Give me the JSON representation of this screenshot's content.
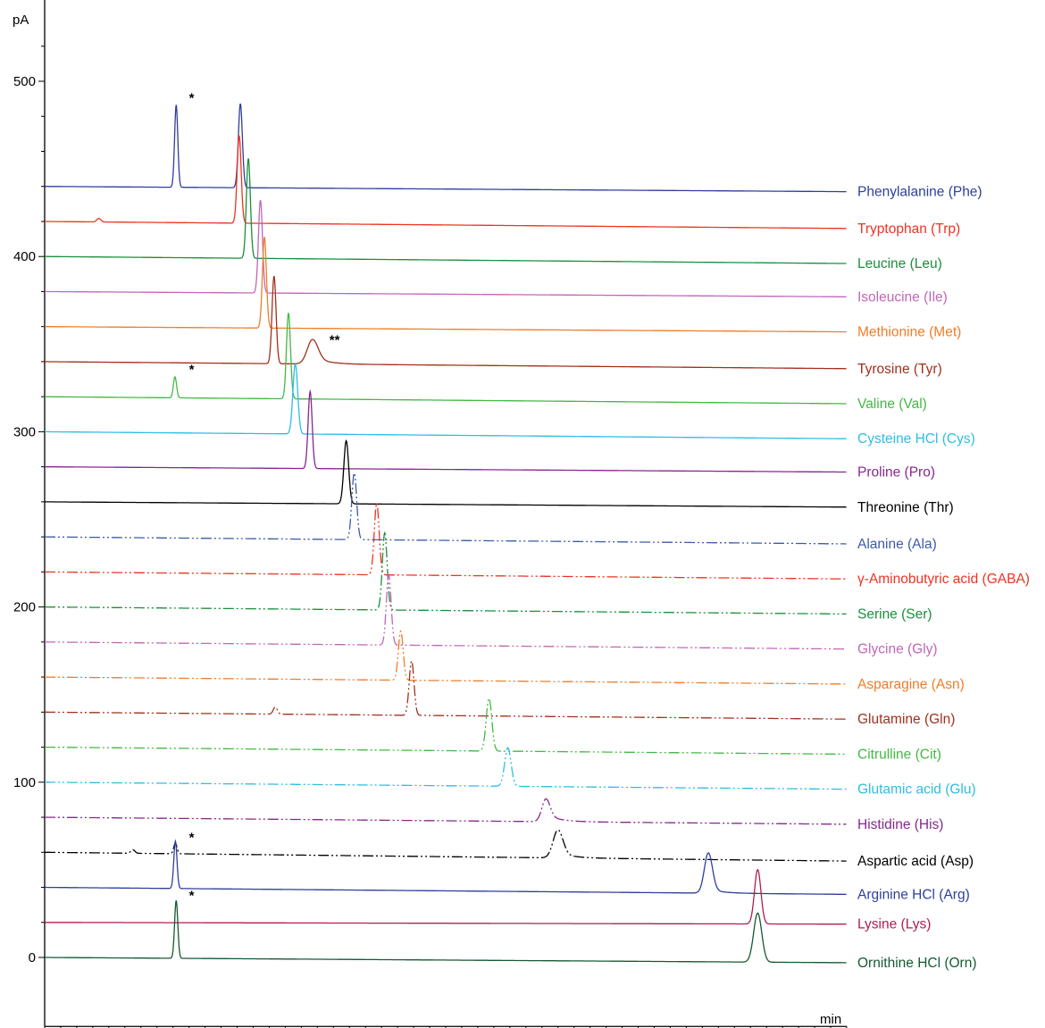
{
  "chart_data": {
    "type": "line",
    "title": "",
    "xlabel": "min",
    "ylabel": "pA",
    "xlim": [
      0,
      20
    ],
    "ylim": [
      -20,
      540
    ],
    "x_ticks": [
      "0.0",
      "2.0",
      "4.0",
      "6.0",
      "8.0",
      "10.0",
      "12.0",
      "14.0",
      "16.0",
      "18.0"
    ],
    "x_tick_values": [
      0,
      2,
      4,
      6,
      8,
      10,
      12,
      14,
      16,
      18
    ],
    "y_ticks": [
      "0",
      "100",
      "200",
      "300",
      "400",
      "500"
    ],
    "y_tick_values": [
      0,
      100,
      200,
      300,
      400,
      500
    ],
    "series": [
      {
        "name": "Phenylalanine (Phe)",
        "color": "#2e3f9a",
        "style": "solid",
        "baseline": 440,
        "end": 437,
        "peaks": [
          {
            "t": 3.28,
            "h": 47,
            "w": 0.04
          },
          {
            "t": 4.88,
            "h": 48,
            "w": 0.05
          }
        ]
      },
      {
        "name": "Tryptophan (Trp)",
        "color": "#ee3322",
        "style": "solid",
        "baseline": 420,
        "end": 416,
        "peaks": [
          {
            "t": 1.35,
            "h": 2,
            "w": 0.05
          },
          {
            "t": 4.85,
            "h": 50,
            "w": 0.05
          }
        ]
      },
      {
        "name": "Leucine (Leu)",
        "color": "#1a8f3c",
        "style": "solid",
        "baseline": 400,
        "end": 396,
        "peaks": [
          {
            "t": 5.08,
            "h": 57,
            "w": 0.05
          }
        ]
      },
      {
        "name": "Isoleucine (Ile)",
        "color": "#c266b8",
        "style": "solid",
        "baseline": 380,
        "end": 377,
        "peaks": [
          {
            "t": 5.38,
            "h": 53,
            "w": 0.05
          }
        ]
      },
      {
        "name": "Methionine (Met)",
        "color": "#ef7d27",
        "style": "solid",
        "baseline": 360,
        "end": 357,
        "peaks": [
          {
            "t": 5.48,
            "h": 52,
            "w": 0.05
          }
        ]
      },
      {
        "name": "Tyrosine (Tyr)",
        "color": "#a1301c",
        "style": "solid",
        "baseline": 340,
        "end": 336,
        "peaks": [
          {
            "t": 5.72,
            "h": 50,
            "w": 0.05
          },
          {
            "t": 6.68,
            "h": 14,
            "w": 0.13,
            "tail": 0.3
          }
        ]
      },
      {
        "name": "Valine (Val)",
        "color": "#44b844",
        "style": "solid",
        "baseline": 320,
        "end": 316,
        "peaks": [
          {
            "t": 3.25,
            "h": 12,
            "w": 0.04
          },
          {
            "t": 6.08,
            "h": 49,
            "w": 0.05
          }
        ]
      },
      {
        "name": "Cysteine HCl (Cys)",
        "color": "#2fbde4",
        "style": "solid",
        "baseline": 300,
        "end": 296,
        "peaks": [
          {
            "t": 6.25,
            "h": 40,
            "w": 0.06
          }
        ]
      },
      {
        "name": "Proline (Pro)",
        "color": "#88278e",
        "style": "solid",
        "baseline": 280,
        "end": 277,
        "peaks": [
          {
            "t": 6.62,
            "h": 44,
            "w": 0.05
          }
        ]
      },
      {
        "name": "Threonine (Thr)",
        "color": "#000000",
        "style": "solid",
        "baseline": 260,
        "end": 257,
        "peaks": [
          {
            "t": 7.52,
            "h": 36,
            "w": 0.06
          }
        ]
      },
      {
        "name": "Alanine (Ala)",
        "color": "#3e5aa8",
        "style": "dashdot",
        "baseline": 240,
        "end": 236,
        "peaks": [
          {
            "t": 7.72,
            "h": 38,
            "w": 0.06
          }
        ]
      },
      {
        "name": "γ-Aminobutyric acid (GABA)",
        "color": "#ee3322",
        "style": "dashdot",
        "baseline": 220,
        "end": 216,
        "peaks": [
          {
            "t": 8.28,
            "h": 41,
            "w": 0.06
          }
        ]
      },
      {
        "name": "Serine (Ser)",
        "color": "#1a8f3c",
        "style": "dashdot",
        "baseline": 200,
        "end": 196,
        "peaks": [
          {
            "t": 8.48,
            "h": 44,
            "w": 0.06
          }
        ]
      },
      {
        "name": "Glycine (Gly)",
        "color": "#c266b8",
        "style": "dashdot",
        "baseline": 180,
        "end": 176,
        "peaks": [
          {
            "t": 8.58,
            "h": 40,
            "w": 0.06
          }
        ]
      },
      {
        "name": "Asparagine (Asn)",
        "color": "#ef7d27",
        "style": "dashdot",
        "baseline": 160,
        "end": 156,
        "peaks": [
          {
            "t": 8.88,
            "h": 28,
            "w": 0.06
          }
        ]
      },
      {
        "name": "Glutamine (Gln)",
        "color": "#a1301c",
        "style": "dashdot",
        "baseline": 140,
        "end": 136,
        "peaks": [
          {
            "t": 5.75,
            "h": 4,
            "w": 0.05
          },
          {
            "t": 9.15,
            "h": 31,
            "w": 0.06
          }
        ]
      },
      {
        "name": "Citrulline (Cit)",
        "color": "#44b844",
        "style": "dashdot",
        "baseline": 120,
        "end": 116,
        "peaks": [
          {
            "t": 11.08,
            "h": 30,
            "w": 0.07
          }
        ]
      },
      {
        "name": "Glutamic acid (Glu)",
        "color": "#2fbde4",
        "style": "dashdot",
        "baseline": 100,
        "end": 96,
        "peaks": [
          {
            "t": 11.55,
            "h": 22,
            "w": 0.08
          }
        ]
      },
      {
        "name": "Histidine (His)",
        "color": "#88278e",
        "style": "dashdot",
        "baseline": 80,
        "end": 76,
        "peaks": [
          {
            "t": 12.5,
            "h": 13,
            "w": 0.1,
            "tail": 0.3
          }
        ]
      },
      {
        "name": "Aspartic acid (Asp)",
        "color": "#000000",
        "style": "dashdot",
        "baseline": 60,
        "end": 55,
        "peaks": [
          {
            "t": 2.2,
            "h": 2,
            "w": 0.05
          },
          {
            "t": 3.26,
            "h": 6,
            "w": 0.04
          },
          {
            "t": 12.8,
            "h": 16,
            "w": 0.12,
            "tail": 0.2
          }
        ]
      },
      {
        "name": "Arginine HCl (Arg)",
        "color": "#2e3f9a",
        "style": "solid",
        "baseline": 40,
        "end": 36,
        "peaks": [
          {
            "t": 3.26,
            "h": 27,
            "w": 0.04
          },
          {
            "t": 16.55,
            "h": 23,
            "w": 0.1,
            "tail": 0.1
          }
        ]
      },
      {
        "name": "Lysine (Lys)",
        "color": "#b21c53",
        "style": "solid",
        "baseline": 20,
        "end": 19,
        "peaks": [
          {
            "t": 17.78,
            "h": 31,
            "w": 0.08
          }
        ]
      },
      {
        "name": "Ornithine HCl (Orn)",
        "color": "#145a32",
        "style": "solid",
        "baseline": 0,
        "end": -3,
        "peaks": [
          {
            "t": 3.28,
            "h": 33,
            "w": 0.04
          },
          {
            "t": 17.78,
            "h": 28,
            "w": 0.1
          }
        ]
      }
    ],
    "annotations": [
      {
        "text": "*",
        "x": 3.6,
        "y": 488
      },
      {
        "text": "**",
        "x": 7.1,
        "y": 350
      },
      {
        "text": "*",
        "x": 3.6,
        "y": 333
      },
      {
        "text": "*",
        "x": 3.6,
        "y": 66
      },
      {
        "text": "*",
        "x": 3.6,
        "y": 33
      }
    ]
  }
}
